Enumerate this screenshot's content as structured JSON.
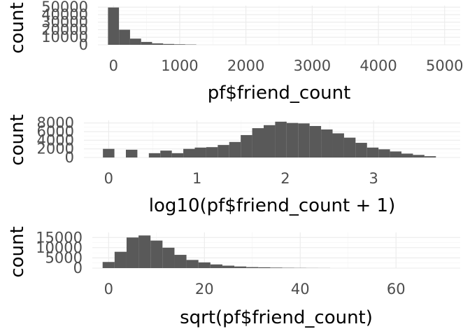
{
  "chart_data": [
    {
      "type": "histogram",
      "xlabel": "pf$friend_count",
      "ylabel": "count",
      "xlim": [
        -235,
        5235
      ],
      "ylim": [
        0,
        52000
      ],
      "x_ticks": [
        0,
        1000,
        2000,
        3000,
        4000,
        5000
      ],
      "y_ticks": [
        0,
        10000,
        20000,
        30000,
        40000,
        50000
      ],
      "x_tick_labels": [
        "0",
        "1000",
        "2000",
        "3000",
        "4000",
        "5000"
      ],
      "y_tick_labels": [
        "0",
        "10000",
        "20000",
        "30000",
        "40000",
        "50000"
      ],
      "bins": [
        {
          "x0": -83,
          "x1": 83,
          "count": 49500
        },
        {
          "x0": 83,
          "x1": 250,
          "count": 20000
        },
        {
          "x0": 250,
          "x1": 417,
          "count": 8200
        },
        {
          "x0": 417,
          "x1": 583,
          "count": 3800
        },
        {
          "x0": 583,
          "x1": 750,
          "count": 1900
        },
        {
          "x0": 750,
          "x1": 917,
          "count": 1100
        },
        {
          "x0": 917,
          "x1": 1083,
          "count": 700
        },
        {
          "x0": 1083,
          "x1": 1250,
          "count": 400
        }
      ],
      "grid": true
    },
    {
      "type": "histogram",
      "xlabel": "log10(pf$friend_count + 1)",
      "ylabel": "count",
      "xlim": [
        -0.28,
        3.98
      ],
      "ylim": [
        0,
        8600
      ],
      "x_ticks": [
        0,
        1,
        2,
        3
      ],
      "y_ticks": [
        0,
        2000,
        4000,
        6000,
        8000
      ],
      "x_tick_labels": [
        "0",
        "1",
        "2",
        "3"
      ],
      "y_tick_labels": [
        "0",
        "2000",
        "4000",
        "6000",
        "8000"
      ],
      "bins": [
        {
          "x0": -0.065,
          "x1": 0.065,
          "count": 2000
        },
        {
          "x0": 0.065,
          "x1": 0.195,
          "count": 0
        },
        {
          "x0": 0.195,
          "x1": 0.325,
          "count": 1800
        },
        {
          "x0": 0.325,
          "x1": 0.455,
          "count": 0
        },
        {
          "x0": 0.455,
          "x1": 0.585,
          "count": 1000
        },
        {
          "x0": 0.585,
          "x1": 0.715,
          "count": 1600
        },
        {
          "x0": 0.715,
          "x1": 0.845,
          "count": 1000
        },
        {
          "x0": 0.845,
          "x1": 0.975,
          "count": 2000
        },
        {
          "x0": 0.975,
          "x1": 1.105,
          "count": 2300
        },
        {
          "x0": 1.105,
          "x1": 1.235,
          "count": 2400
        },
        {
          "x0": 1.235,
          "x1": 1.365,
          "count": 2900
        },
        {
          "x0": 1.365,
          "x1": 1.495,
          "count": 3600
        },
        {
          "x0": 1.495,
          "x1": 1.625,
          "count": 5200
        },
        {
          "x0": 1.625,
          "x1": 1.755,
          "count": 6800
        },
        {
          "x0": 1.755,
          "x1": 1.885,
          "count": 7500
        },
        {
          "x0": 1.885,
          "x1": 2.015,
          "count": 8300
        },
        {
          "x0": 2.015,
          "x1": 2.145,
          "count": 8000
        },
        {
          "x0": 2.145,
          "x1": 2.275,
          "count": 7900
        },
        {
          "x0": 2.275,
          "x1": 2.405,
          "count": 7300
        },
        {
          "x0": 2.405,
          "x1": 2.535,
          "count": 6500
        },
        {
          "x0": 2.535,
          "x1": 2.665,
          "count": 5600
        },
        {
          "x0": 2.665,
          "x1": 2.795,
          "count": 4600
        },
        {
          "x0": 2.795,
          "x1": 2.925,
          "count": 3400
        },
        {
          "x0": 2.925,
          "x1": 3.055,
          "count": 2300
        },
        {
          "x0": 3.055,
          "x1": 3.185,
          "count": 1900
        },
        {
          "x0": 3.185,
          "x1": 3.315,
          "count": 1400
        },
        {
          "x0": 3.315,
          "x1": 3.445,
          "count": 900
        },
        {
          "x0": 3.445,
          "x1": 3.575,
          "count": 600
        },
        {
          "x0": 3.575,
          "x1": 3.705,
          "count": 300
        }
      ],
      "grid": true
    },
    {
      "type": "histogram",
      "xlabel": "sqrt(pf$friend_count)",
      "ylabel": "count",
      "xlim": [
        -3.4,
        73.4
      ],
      "ylim": [
        0,
        17500
      ],
      "x_ticks": [
        0,
        20,
        40,
        60
      ],
      "y_ticks": [
        0,
        5000,
        10000,
        15000
      ],
      "x_tick_labels": [
        "0",
        "20",
        "40",
        "60"
      ],
      "y_tick_labels": [
        "0",
        "5000",
        "10000",
        "15000"
      ],
      "bins": [
        {
          "x0": -1.25,
          "x1": 1.25,
          "count": 3000
        },
        {
          "x0": 1.25,
          "x1": 3.75,
          "count": 8000
        },
        {
          "x0": 3.75,
          "x1": 6.25,
          "count": 15000
        },
        {
          "x0": 6.25,
          "x1": 8.75,
          "count": 16000
        },
        {
          "x0": 8.75,
          "x1": 11.25,
          "count": 13500
        },
        {
          "x0": 11.25,
          "x1": 13.75,
          "count": 10000
        },
        {
          "x0": 13.75,
          "x1": 16.25,
          "count": 6500
        },
        {
          "x0": 16.25,
          "x1": 18.75,
          "count": 4000
        },
        {
          "x0": 18.75,
          "x1": 21.25,
          "count": 2800
        },
        {
          "x0": 21.25,
          "x1": 23.75,
          "count": 1800
        },
        {
          "x0": 23.75,
          "x1": 26.25,
          "count": 1200
        },
        {
          "x0": 26.25,
          "x1": 28.75,
          "count": 800
        },
        {
          "x0": 28.75,
          "x1": 31.25,
          "count": 500
        },
        {
          "x0": 31.25,
          "x1": 33.75,
          "count": 400
        },
        {
          "x0": 33.75,
          "x1": 36.25,
          "count": 250
        },
        {
          "x0": 36.25,
          "x1": 38.75,
          "count": 150
        },
        {
          "x0": 38.75,
          "x1": 41.25,
          "count": 100
        },
        {
          "x0": 41.25,
          "x1": 43.75,
          "count": 60
        },
        {
          "x0": 43.75,
          "x1": 46.25,
          "count": 40
        }
      ],
      "grid": true
    }
  ]
}
